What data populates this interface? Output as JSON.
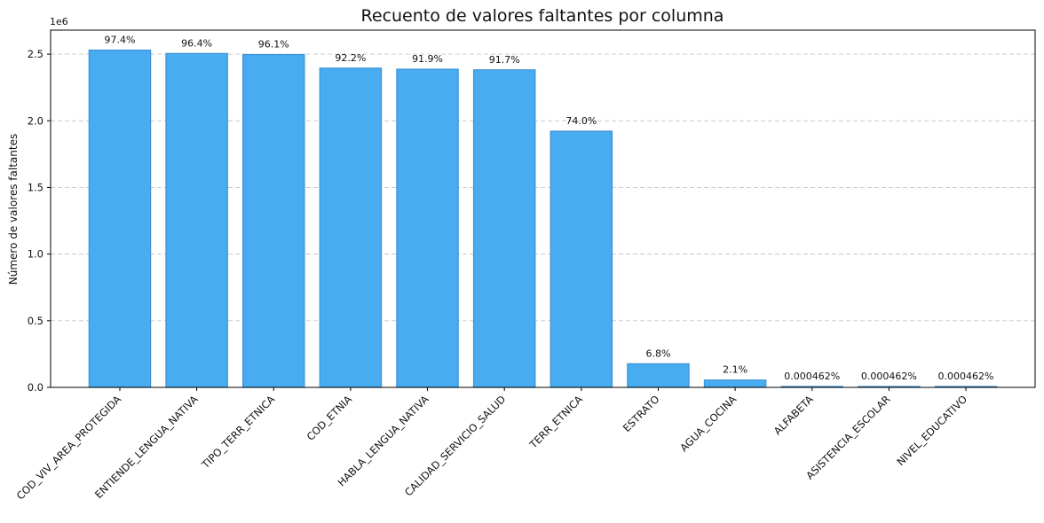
{
  "chart_data": {
    "type": "bar",
    "title": "Recuento de valores faltantes por columna",
    "xlabel": "",
    "ylabel": "Número de valores faltantes",
    "y_offset_label": "1e6",
    "ylim": [
      0,
      2.68
    ],
    "y_ticks": [
      0,
      0.5,
      1.0,
      1.5,
      2.0,
      2.5
    ],
    "y_tick_labels": [
      "0.0",
      "0.5",
      "1.0",
      "1.5",
      "2.0",
      "2.5"
    ],
    "grid": "horizontal dashed",
    "categories": [
      "COD_VIV_AREA_PROTEGIDA",
      "ENTIENDE_LENGUA_NATIVA",
      "TIPO_TERR_ETNICA",
      "COD_ETNIA",
      "HABLA_LENGUA_NATIVA",
      "CALIDAD_SERVICIO_SALUD",
      "TERR_ETNICA",
      "ESTRATO",
      "AGUA_COCINA",
      "ALFABETA",
      "ASISTENCIA_ESCOLAR",
      "NIVEL_EDUCATIVO"
    ],
    "values": [
      2.53,
      2.505,
      2.497,
      2.395,
      2.387,
      2.382,
      1.922,
      0.177,
      0.055,
      1.2e-05,
      1.2e-05,
      1.2e-05
    ],
    "data_labels": [
      "97.4%",
      "96.4%",
      "96.1%",
      "92.2%",
      "91.9%",
      "91.7%",
      "74.0%",
      "6.8%",
      "2.1%",
      "0.000462%",
      "0.000462%",
      "0.000462%"
    ],
    "colors": {
      "bar_fill": "#48acf0",
      "bar_edge": "#3d92d6",
      "grid": "#c8c8c8",
      "axis": "#000000"
    }
  }
}
